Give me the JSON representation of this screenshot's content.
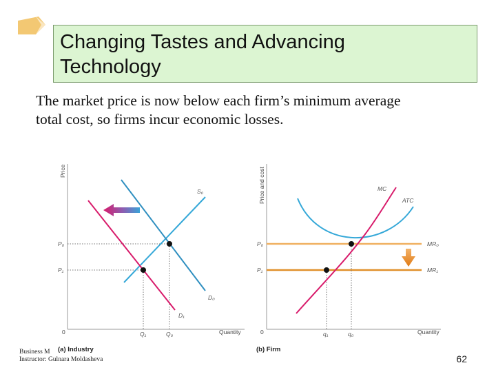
{
  "slide": {
    "title": "Changing Tastes and Advancing\nTechnology",
    "subtitle": "The market price is now below each firm’s minimum average\ntotal cost, so firms incur economic losses.",
    "footer_line1": "Business M",
    "footer_line2": "Instructor: Gulnara Moldasheva",
    "page_number": "62"
  },
  "industry": {
    "panel_label": "(a) Industry",
    "y_axis_title": "Price",
    "x_axis_title": "Quantity",
    "origin": "0",
    "price_labels": [
      "P₀",
      "P₁"
    ],
    "quantity_labels": [
      "Q₁",
      "Q₀"
    ],
    "supply_label": "S₀",
    "demand_labels": [
      "D₀",
      "D₁"
    ]
  },
  "firm": {
    "panel_label": "(b) Firm",
    "y_axis_title": "Price and cost",
    "x_axis_title": "Quantity",
    "origin": "0",
    "price_labels": [
      "P₀",
      "P₁"
    ],
    "quantity_labels": [
      "q₁",
      "q₀"
    ],
    "curve_labels": {
      "mc": "MC",
      "atc": "ATC",
      "mr0": "MR₀",
      "mr1": "MR₁"
    }
  },
  "colors": {
    "title_bg": "#dcf5d2",
    "supply": "#35a8d8",
    "demand_old": "#2f8fc0",
    "demand_new": "#d81b6b",
    "mr0": "#f0b060",
    "mr1": "#e0902a",
    "arrow_down": "#e88a1c"
  }
}
